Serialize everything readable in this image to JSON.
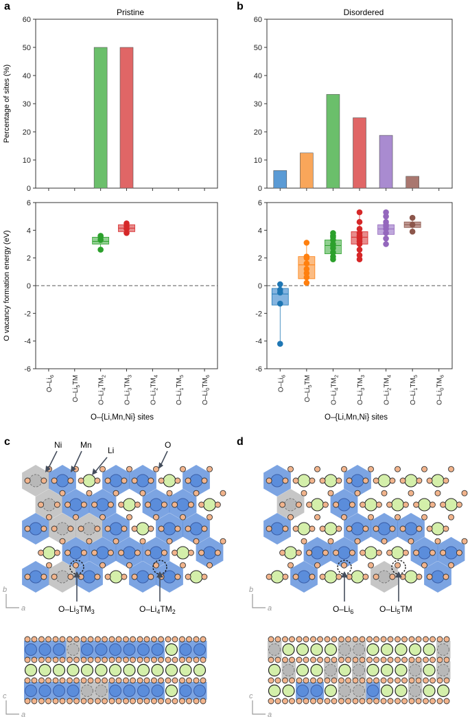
{
  "panel_labels": {
    "a": "a",
    "b": "b",
    "c": "c",
    "d": "d"
  },
  "chart_data": [
    {
      "id": "a_top",
      "type": "bar",
      "title": "Pristine",
      "ylabel": "Percentage of sites (%)",
      "ylim": [
        0,
        60
      ],
      "yticks": [
        "0",
        "10",
        "20",
        "30",
        "40",
        "50",
        "60"
      ],
      "categories": [
        "O–Li6",
        "O–Li5TM",
        "O–Li4TM2",
        "O–Li3TM3",
        "O–Li2TM4",
        "O–Li1TM5",
        "O–Li0TM6"
      ],
      "values": [
        0,
        0,
        50,
        50,
        0,
        0,
        0
      ],
      "colors": [
        "#5b9bd5",
        "#f9a65a",
        "#6bbf6b",
        "#e06666",
        "#a98bd0",
        "#a9776f",
        "#cccccc"
      ]
    },
    {
      "id": "b_top",
      "type": "bar",
      "title": "Disordered",
      "ylabel": "",
      "ylim": [
        0,
        60
      ],
      "yticks": [
        "0",
        "10",
        "20",
        "30",
        "40",
        "50",
        "60"
      ],
      "categories": [
        "O–Li6",
        "O–Li5TM",
        "O–Li4TM2",
        "O–Li3TM3",
        "O–Li2TM4",
        "O–Li1TM5",
        "O–Li0TM6"
      ],
      "values": [
        6.25,
        12.5,
        33.3,
        25.0,
        18.75,
        4.2,
        0
      ],
      "colors": [
        "#5b9bd5",
        "#f9a65a",
        "#6bbf6b",
        "#e06666",
        "#a98bd0",
        "#a9776f",
        "#cccccc"
      ]
    },
    {
      "id": "a_bottom",
      "type": "scatter",
      "ylabel": "O vacancy formation energy (eV)",
      "ylim": [
        -6,
        6
      ],
      "yticks": [
        "-6",
        "-4",
        "-2",
        "0",
        "2",
        "4",
        "6"
      ],
      "xlabel": "O–{Li,Mn,Ni} sites",
      "tick_labels": [
        {
          "main": "O–Li",
          "sub": "6",
          "rest": "",
          "sub2": ""
        },
        {
          "main": "O–Li",
          "sub": "5",
          "rest": "TM",
          "sub2": ""
        },
        {
          "main": "O–Li",
          "sub": "4",
          "rest": "TM",
          "sub2": "2"
        },
        {
          "main": "O–Li",
          "sub": "3",
          "rest": "TM",
          "sub2": "3"
        },
        {
          "main": "O–Li",
          "sub": "2",
          "rest": "TM",
          "sub2": "4"
        },
        {
          "main": "O–Li",
          "sub": "1",
          "rest": "TM",
          "sub2": "5"
        },
        {
          "main": "O–Li",
          "sub": "0",
          "rest": "TM",
          "sub2": "6"
        }
      ],
      "points": [
        [],
        [],
        [
          3.3,
          3.6,
          2.6,
          3.5
        ],
        [
          4.1,
          4.5,
          3.8,
          4.3
        ],
        [],
        [],
        []
      ],
      "boxes": [
        null,
        null,
        [
          3.0,
          3.5,
          3.2
        ],
        [
          3.9,
          4.4,
          4.15
        ],
        null,
        null,
        null
      ],
      "colors": [
        "#1f77b4",
        "#ff7f0e",
        "#2ca02c",
        "#d62728",
        "#9467bd",
        "#8c564b",
        "#7f7f7f"
      ],
      "box_colors": [
        "#5b9bd5",
        "#f9a65a",
        "#6bbf6b",
        "#e06666",
        "#a98bd0",
        "#a9776f",
        "#cccccc"
      ]
    },
    {
      "id": "b_bottom",
      "type": "scatter",
      "ylabel": "",
      "ylim": [
        -6,
        6
      ],
      "yticks": [
        "-6",
        "-4",
        "-2",
        "0",
        "2",
        "4",
        "6"
      ],
      "xlabel": "O–{Li,Mn,Ni} sites",
      "tick_labels": [
        {
          "main": "O–Li",
          "sub": "6",
          "rest": "",
          "sub2": ""
        },
        {
          "main": "O–Li",
          "sub": "5",
          "rest": "TM",
          "sub2": ""
        },
        {
          "main": "O–Li",
          "sub": "4",
          "rest": "TM",
          "sub2": "2"
        },
        {
          "main": "O–Li",
          "sub": "3",
          "rest": "TM",
          "sub2": "3"
        },
        {
          "main": "O–Li",
          "sub": "2",
          "rest": "TM",
          "sub2": "4"
        },
        {
          "main": "O–Li",
          "sub": "1",
          "rest": "TM",
          "sub2": "5"
        },
        {
          "main": "O–Li",
          "sub": "0",
          "rest": "TM",
          "sub2": "6"
        }
      ],
      "points": [
        [
          0.1,
          -0.3,
          -0.5,
          -1.3,
          -4.2
        ],
        [
          3.1,
          2.0,
          1.6,
          1.2,
          0.6,
          0.2,
          0.9,
          2.1
        ],
        [
          3.8,
          3.6,
          3.3,
          3.0,
          2.7,
          2.4,
          2.1,
          1.9,
          2.9,
          3.5
        ],
        [
          5.3,
          4.6,
          4.1,
          3.8,
          3.4,
          3.0,
          2.6,
          2.2,
          1.9,
          3.6,
          3.2
        ],
        [
          5.3,
          5.0,
          4.6,
          4.3,
          4.1,
          3.8,
          3.4,
          3.0,
          4.4
        ],
        [
          4.9,
          4.4,
          3.9
        ],
        []
      ],
      "boxes": [
        [
          -1.4,
          -0.2,
          -0.6
        ],
        [
          0.5,
          2.1,
          1.5
        ],
        [
          2.3,
          3.3,
          2.9
        ],
        [
          3.0,
          3.9,
          3.5
        ],
        [
          3.7,
          4.4,
          4.1
        ],
        [
          4.2,
          4.6,
          4.4
        ],
        null
      ],
      "colors": [
        "#1f77b4",
        "#ff7f0e",
        "#2ca02c",
        "#d62728",
        "#9467bd",
        "#8c564b",
        "#7f7f7f"
      ],
      "box_colors": [
        "#5b9bd5",
        "#f9a65a",
        "#6bbf6b",
        "#e06666",
        "#a98bd0",
        "#a9776f",
        "#cccccc"
      ]
    }
  ],
  "structure_c": {
    "labels": {
      "ni": "Ni",
      "mn": "Mn",
      "li": "Li",
      "o": "O"
    },
    "site1": {
      "main": "O–Li",
      "s1": "3",
      "rest": "TM",
      "s2": "3"
    },
    "site2": {
      "main": "O–Li",
      "s1": "4",
      "rest": "TM",
      "s2": "2"
    },
    "axes_top": {
      "v": "b",
      "h": "a"
    },
    "axes_bottom": {
      "v": "c",
      "h": "a"
    }
  },
  "structure_d": {
    "site1": {
      "main": "O–Li",
      "s1": "6",
      "rest": "",
      "s2": ""
    },
    "site2": {
      "main": "O–Li",
      "s1": "5",
      "rest": "TM",
      "s2": ""
    },
    "axes_top": {
      "v": "b",
      "h": "a"
    },
    "axes_bottom": {
      "v": "c",
      "h": "a"
    }
  },
  "colors": {
    "mn": "#5b8ddb",
    "ni": "#b8b8b8",
    "li": "#d4efaa",
    "o": "#f2b48c",
    "dashed": "#8a8a8a"
  }
}
